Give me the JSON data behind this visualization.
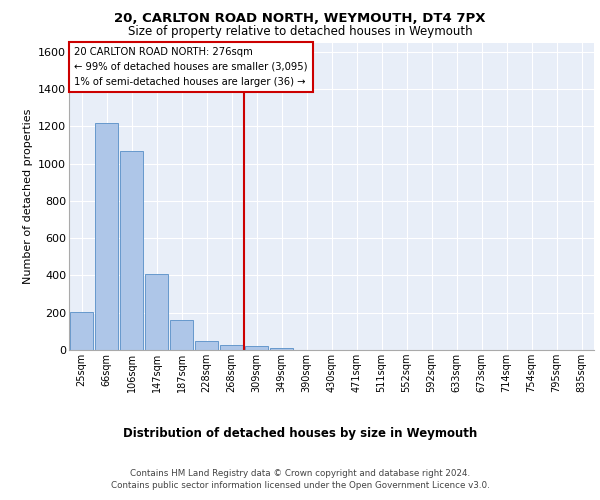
{
  "title": "20, CARLTON ROAD NORTH, WEYMOUTH, DT4 7PX",
  "subtitle": "Size of property relative to detached houses in Weymouth",
  "xlabel": "Distribution of detached houses by size in Weymouth",
  "ylabel": "Number of detached properties",
  "categories": [
    "25sqm",
    "66sqm",
    "106sqm",
    "147sqm",
    "187sqm",
    "228sqm",
    "268sqm",
    "309sqm",
    "349sqm",
    "390sqm",
    "430sqm",
    "471sqm",
    "511sqm",
    "552sqm",
    "592sqm",
    "633sqm",
    "673sqm",
    "714sqm",
    "754sqm",
    "795sqm",
    "835sqm"
  ],
  "values": [
    205,
    1220,
    1070,
    410,
    160,
    50,
    25,
    20,
    12,
    0,
    0,
    0,
    0,
    0,
    0,
    0,
    0,
    0,
    0,
    0,
    0
  ],
  "bar_color": "#aec6e8",
  "bar_edge_color": "#6699cc",
  "vline_x": 6.5,
  "vline_color": "#cc0000",
  "annotation_text": "20 CARLTON ROAD NORTH: 276sqm\n← 99% of detached houses are smaller (3,095)\n1% of semi-detached houses are larger (36) →",
  "annotation_box_color": "#cc0000",
  "ylim": [
    0,
    1650
  ],
  "yticks": [
    0,
    200,
    400,
    600,
    800,
    1000,
    1200,
    1400,
    1600
  ],
  "background_color": "#e8eef8",
  "grid_color": "#ffffff",
  "footer": "Contains HM Land Registry data © Crown copyright and database right 2024.\nContains public sector information licensed under the Open Government Licence v3.0."
}
